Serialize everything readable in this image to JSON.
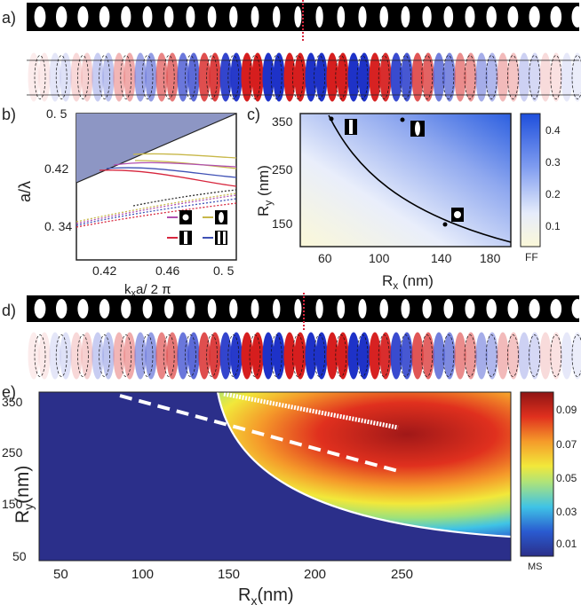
{
  "panels": {
    "a": "a)",
    "b": "b)",
    "c": "c)",
    "d": "d)",
    "e": "e)"
  },
  "panel_b": {
    "ylabel": "a/λ",
    "xlabel": "k",
    "xlabel_sub": "x",
    "xlabel_rest": "a/ 2 π",
    "yticks": [
      "0. 5",
      "0.42",
      "0. 34"
    ],
    "xticks": [
      "0.42",
      "0.46",
      "0. 5"
    ],
    "colors": {
      "magenta": "#b04fb0",
      "olive": "#c8b84a",
      "red": "#d7263d",
      "blue": "#3f51b5",
      "dark": "#333333"
    }
  },
  "panel_c": {
    "ylabel": "R",
    "ylabel_sub": "y",
    "ylabel_rest": " (nm)",
    "xlabel": "R",
    "xlabel_sub": "x",
    "xlabel_rest": " (nm)",
    "yticks": [
      "350",
      "250",
      "150"
    ],
    "xticks": [
      "60",
      "100",
      "140",
      "180"
    ],
    "colorbar_ticks": [
      "0.4",
      "0.3",
      "0.2",
      "0.1"
    ],
    "colorbar_label": "FF"
  },
  "panel_e": {
    "ylabel": "R",
    "ylabel_sub": "y",
    "ylabel_rest": "(nm)",
    "xlabel": "R",
    "xlabel_sub": "x",
    "xlabel_rest": "(nm)",
    "yticks": [
      "350",
      "250",
      "150",
      "50"
    ],
    "xticks": [
      "50",
      "100",
      "150",
      "200",
      "250"
    ],
    "colorbar_ticks": [
      "0.09",
      "0.07",
      "0.05",
      "0.03",
      "0.01"
    ],
    "colorbar_label": "MS"
  }
}
